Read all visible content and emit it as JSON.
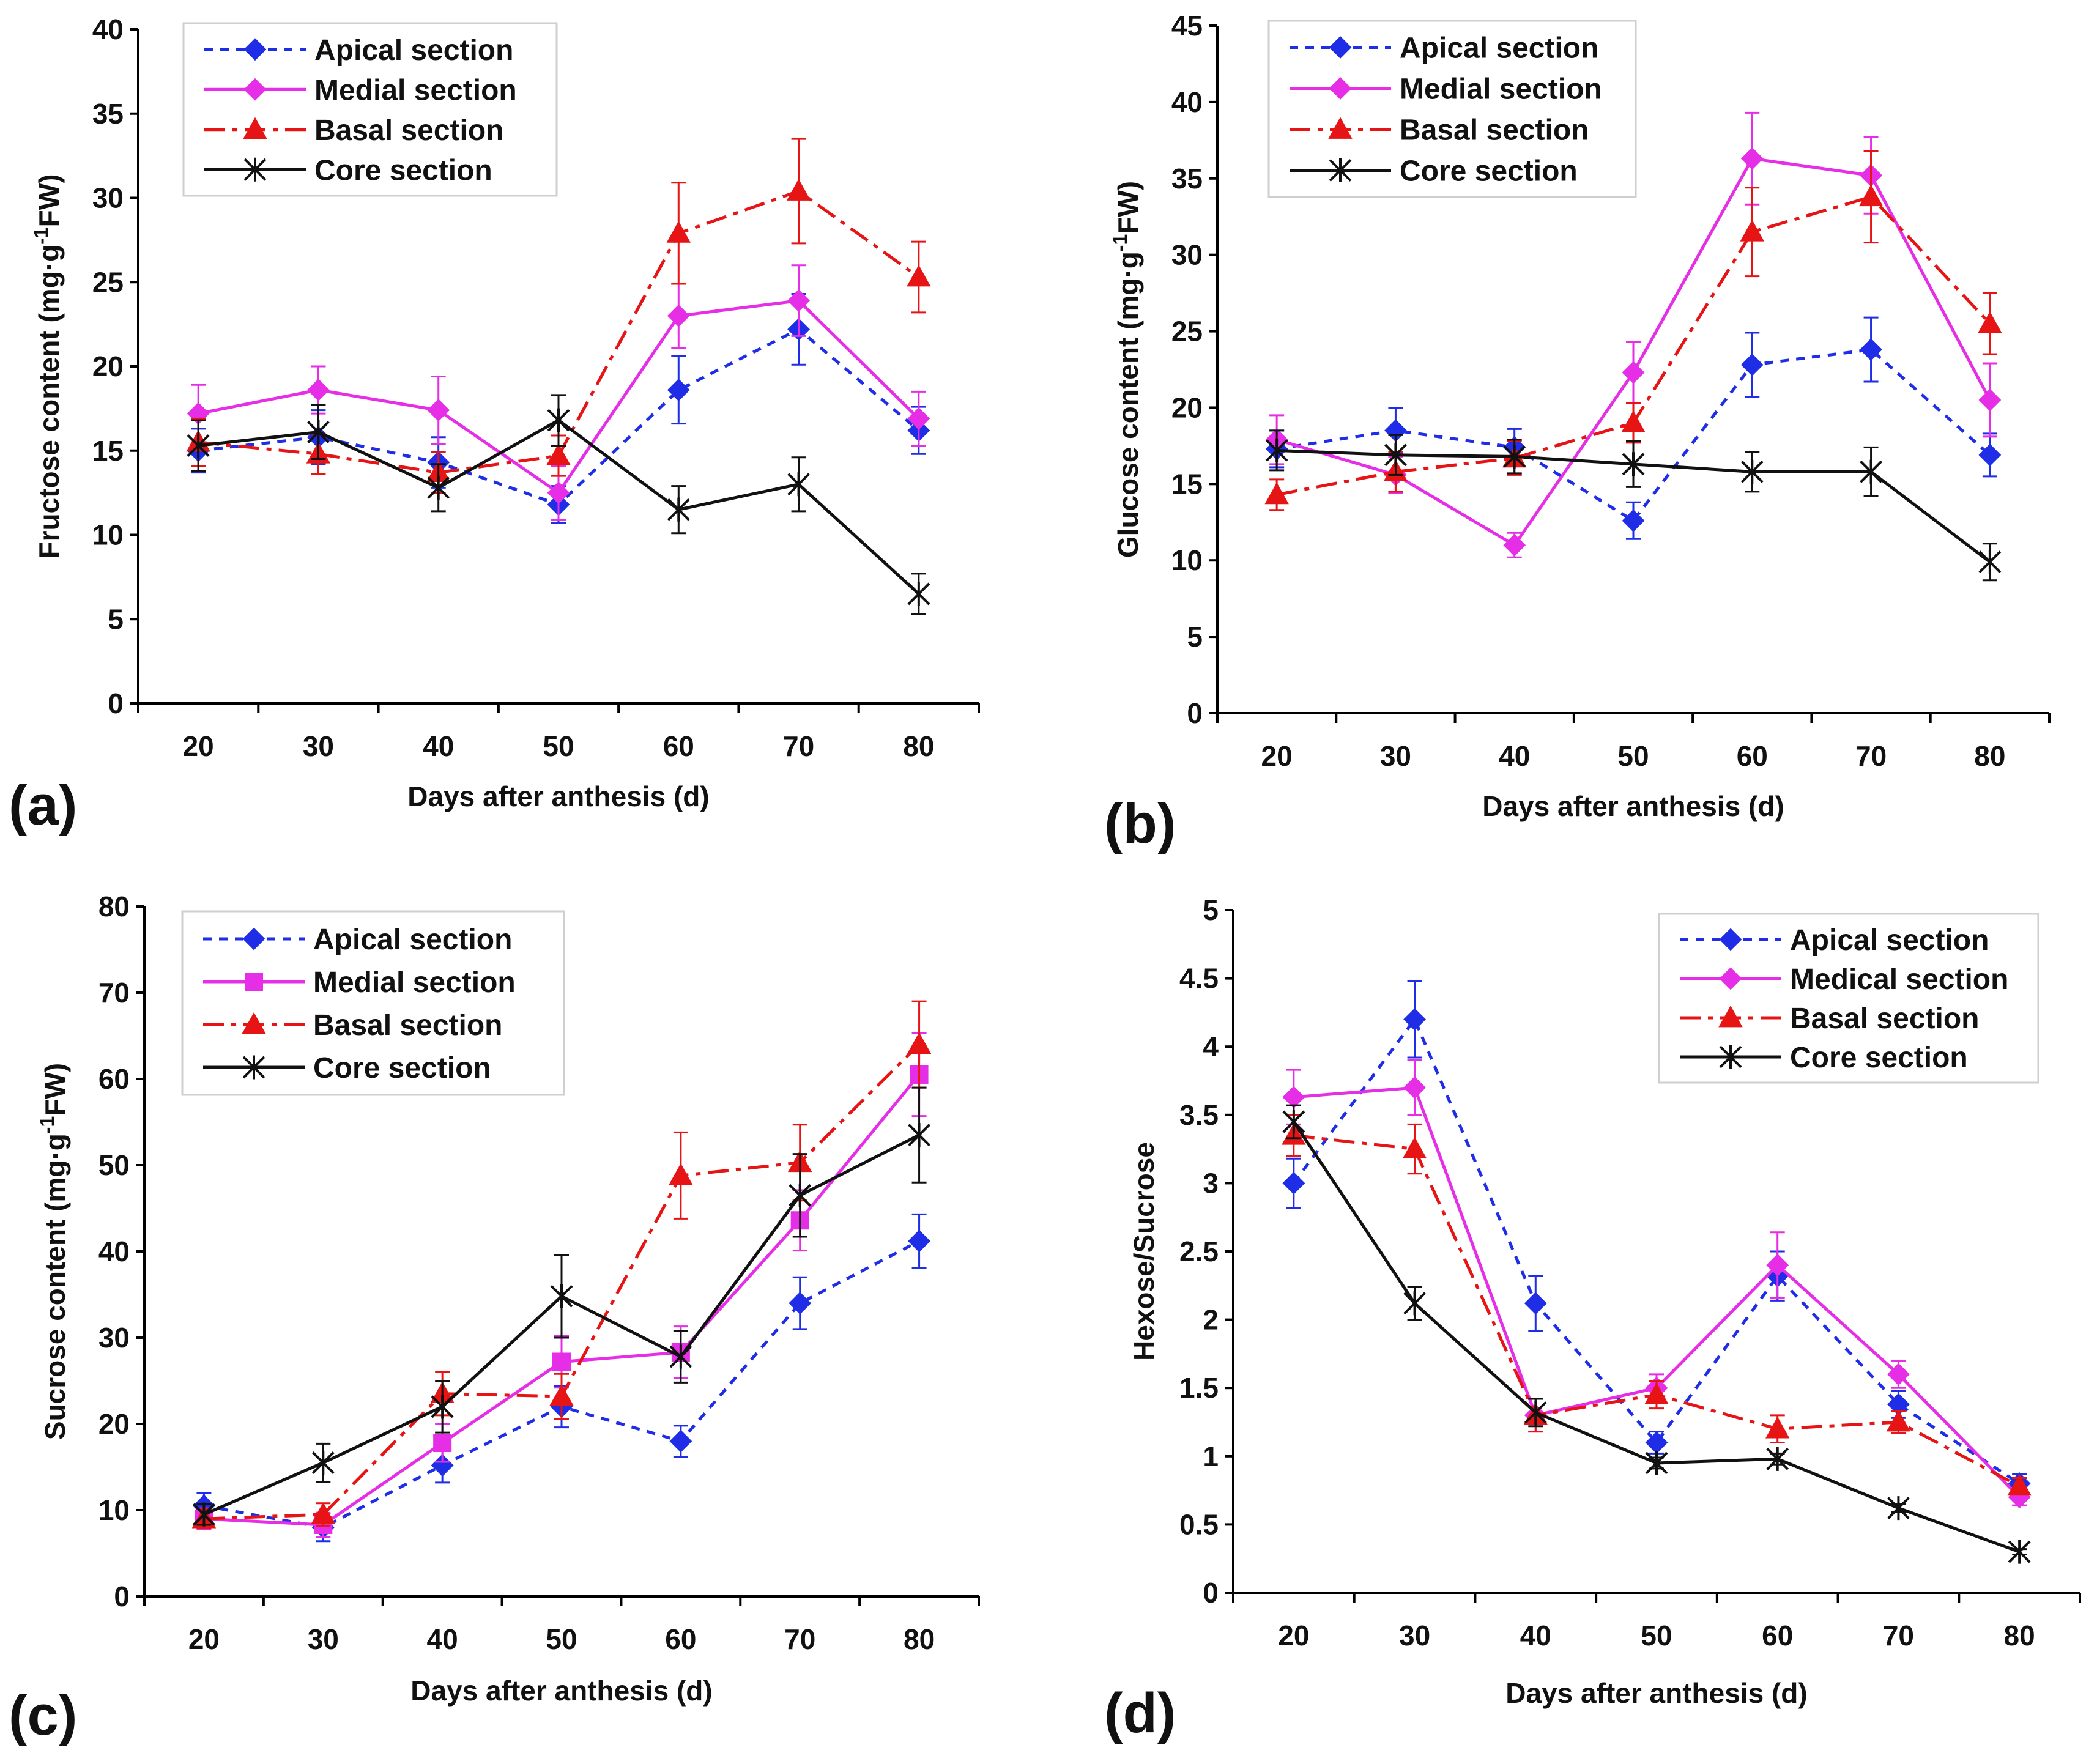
{
  "figure": {
    "series_styles": [
      {
        "key": "apical",
        "color": "#1f2ee6",
        "dash": "dotted",
        "marker": "diamond"
      },
      {
        "key": "medial",
        "color": "#e62ee6",
        "dash": "solid",
        "marker": "diamond"
      },
      {
        "key": "basal",
        "color": "#e61414",
        "dash": "dashdot",
        "marker": "triangle"
      },
      {
        "key": "core",
        "color": "#111111",
        "dash": "solid",
        "marker": "asterisk"
      }
    ]
  },
  "chart_data": [
    {
      "type": "line",
      "panel_label": "(a)",
      "xlabel": "Days after anthesis (d)",
      "ylabel_parts": [
        "Fructose content (mg·g",
        "-1",
        "FW)"
      ],
      "categories": [
        "20",
        "30",
        "40",
        "50",
        "60",
        "70",
        "80"
      ],
      "ylim": [
        0,
        40
      ],
      "yticks": [
        0,
        5,
        10,
        15,
        20,
        25,
        30,
        35,
        40
      ],
      "ytick_labels": [
        "0",
        "5",
        "10",
        "15",
        "20",
        "25",
        "30",
        "35",
        "40"
      ],
      "legend_position": "top-left",
      "series": [
        {
          "name": "Apical section",
          "style": 0,
          "values": [
            15.0,
            15.8,
            14.3,
            11.8,
            18.6,
            22.2,
            16.2
          ],
          "errors": [
            1.3,
            1.6,
            1.5,
            1.1,
            2.0,
            2.1,
            1.4
          ]
        },
        {
          "name": "Medial section",
          "style": 1,
          "values": [
            17.2,
            18.6,
            17.4,
            12.5,
            23.0,
            23.9,
            16.9
          ],
          "errors": [
            1.7,
            1.4,
            2.0,
            1.6,
            1.9,
            2.1,
            1.6
          ]
        },
        {
          "name": "Basal section",
          "style": 2,
          "values": [
            15.5,
            14.8,
            13.7,
            14.7,
            27.9,
            30.4,
            25.3
          ],
          "errors": [
            1.4,
            1.2,
            1.2,
            1.2,
            3.0,
            3.1,
            2.1
          ]
        },
        {
          "name": "Core section",
          "style": 3,
          "values": [
            15.3,
            16.1,
            12.8,
            16.8,
            11.5,
            13.0,
            6.5
          ],
          "errors": [
            1.5,
            1.6,
            1.4,
            1.5,
            1.4,
            1.6,
            1.2
          ]
        }
      ]
    },
    {
      "type": "line",
      "panel_label": "(b)",
      "xlabel": "Days after anthesis (d)",
      "ylabel_parts": [
        "Glucose content (mg·g",
        "-1",
        "FW)"
      ],
      "categories": [
        "20",
        "30",
        "40",
        "50",
        "60",
        "70",
        "80"
      ],
      "ylim": [
        0,
        45
      ],
      "yticks": [
        0,
        5,
        10,
        15,
        20,
        25,
        30,
        35,
        40,
        45
      ],
      "ytick_labels": [
        "0",
        "5",
        "10",
        "15",
        "20",
        "25",
        "30",
        "35",
        "40",
        "45"
      ],
      "legend_position": "top-left",
      "series": [
        {
          "name": "Apical section",
          "style": 0,
          "values": [
            17.3,
            18.5,
            17.4,
            12.6,
            22.8,
            23.8,
            16.9
          ],
          "errors": [
            1.2,
            1.5,
            1.2,
            1.2,
            2.1,
            2.1,
            1.4
          ]
        },
        {
          "name": "Medial section",
          "style": 1,
          "values": [
            17.9,
            15.6,
            11.0,
            22.3,
            36.3,
            35.2,
            20.5
          ],
          "errors": [
            1.6,
            1.2,
            0.8,
            2.0,
            3.0,
            2.5,
            2.4
          ]
        },
        {
          "name": "Basal section",
          "style": 2,
          "values": [
            14.3,
            15.8,
            16.7,
            19.0,
            31.5,
            33.8,
            25.5
          ],
          "errors": [
            1.0,
            1.3,
            1.1,
            1.3,
            2.9,
            3.0,
            2.0
          ]
        },
        {
          "name": "Core section",
          "style": 3,
          "values": [
            17.2,
            16.9,
            16.8,
            16.3,
            15.8,
            15.8,
            9.9
          ],
          "errors": [
            1.3,
            1.3,
            1.1,
            1.5,
            1.3,
            1.6,
            1.2
          ]
        }
      ]
    },
    {
      "type": "line",
      "panel_label": "(c)",
      "xlabel": "Days after anthesis (d)",
      "ylabel_parts": [
        "Sucrose content (mg·g",
        "-1",
        "FW)"
      ],
      "categories": [
        "20",
        "30",
        "40",
        "50",
        "60",
        "70",
        "80"
      ],
      "ylim": [
        0,
        80
      ],
      "yticks": [
        0,
        10,
        20,
        30,
        40,
        50,
        60,
        70,
        80
      ],
      "ytick_labels": [
        "0",
        "10",
        "20",
        "30",
        "40",
        "50",
        "60",
        "70",
        "80"
      ],
      "legend_position": "top-left",
      "series": [
        {
          "name": "Apical section",
          "style": 0,
          "values": [
            10.5,
            8.0,
            15.2,
            22.0,
            18.0,
            34.0,
            41.2
          ],
          "errors": [
            1.5,
            1.6,
            2.0,
            2.4,
            1.8,
            3.0,
            3.1
          ]
        },
        {
          "name": "Medial section",
          "style": 1,
          "values": [
            9.0,
            8.3,
            17.8,
            27.2,
            28.3,
            43.6,
            60.5
          ],
          "errors": [
            1.2,
            1.4,
            2.2,
            3.0,
            3.0,
            3.5,
            4.8
          ]
        },
        {
          "name": "Basal section",
          "style": 2,
          "values": [
            9.0,
            9.5,
            23.5,
            23.2,
            48.8,
            50.3,
            64.0
          ],
          "errors": [
            1.1,
            1.3,
            2.5,
            2.6,
            5.0,
            4.4,
            5.0
          ]
        },
        {
          "name": "Core section",
          "style": 3,
          "values": [
            9.5,
            15.5,
            22.0,
            34.8,
            27.8,
            46.5,
            53.5
          ],
          "errors": [
            1.2,
            2.2,
            3.0,
            4.8,
            3.0,
            4.8,
            5.5
          ]
        }
      ]
    },
    {
      "type": "line",
      "panel_label": "(d)",
      "xlabel": "Days after anthesis (d)",
      "ylabel_parts": [
        "Hexose/Sucrose",
        "",
        ""
      ],
      "categories": [
        "20",
        "30",
        "40",
        "50",
        "60",
        "70",
        "80"
      ],
      "ylim": [
        0,
        5
      ],
      "yticks": [
        0,
        0.5,
        1,
        1.5,
        2,
        2.5,
        3,
        3.5,
        4,
        4.5,
        5
      ],
      "ytick_labels": [
        "0",
        "0.5",
        "1",
        "1.5",
        "2",
        "2.5",
        "3",
        "3.5",
        "4",
        "4.5",
        "5"
      ],
      "legend_position": "top-right",
      "series": [
        {
          "name": "Apical section",
          "style": 0,
          "values": [
            3.0,
            4.2,
            2.12,
            1.1,
            2.32,
            1.38,
            0.8
          ],
          "errors": [
            0.18,
            0.28,
            0.2,
            0.08,
            0.18,
            0.1,
            0.07
          ]
        },
        {
          "name": "Medical section",
          "style": 1,
          "values": [
            3.63,
            3.7,
            1.3,
            1.5,
            2.4,
            1.6,
            0.7
          ],
          "errors": [
            0.2,
            0.2,
            0.12,
            0.1,
            0.24,
            0.1,
            0.06
          ]
        },
        {
          "name": "Basal section",
          "style": 2,
          "values": [
            3.35,
            3.25,
            1.3,
            1.45,
            1.2,
            1.25,
            0.78
          ],
          "errors": [
            0.15,
            0.18,
            0.12,
            0.1,
            0.1,
            0.08,
            0.06
          ]
        },
        {
          "name": "Core section",
          "style": 3,
          "values": [
            3.45,
            2.12,
            1.32,
            0.95,
            0.98,
            0.62,
            0.3
          ],
          "errors": [
            0.12,
            0.12,
            0.1,
            0.04,
            0.04,
            0.03,
            0.02
          ]
        }
      ]
    }
  ]
}
